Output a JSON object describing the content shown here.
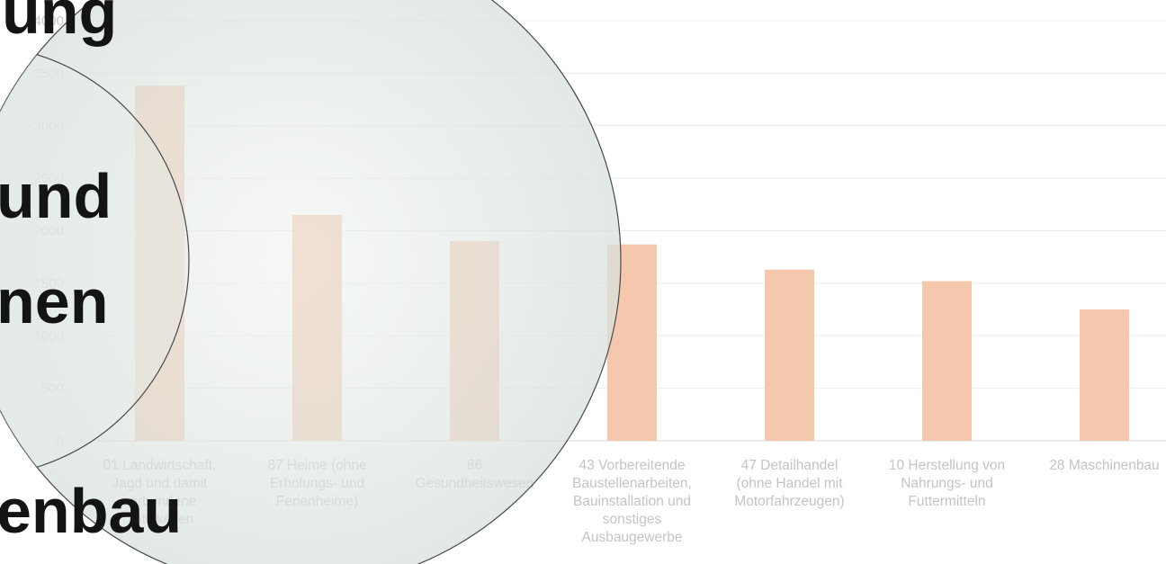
{
  "chart_data": {
    "type": "bar",
    "categories": [
      "01 Landwirtschaft, Jagd und damit verbundene Tätigkeiten",
      "87 Heime (ohne Erholungs- und Ferienheime)",
      "86 Gesundheitswesen",
      "43 Vorbereitende Baustellenarbeiten, Bauinstallation und sonstiges Ausbaugewerbe",
      "47 Detailhandel (ohne Handel mit Motorfahrzeugen)",
      "10 Herstellung von Nahrungs- und Futtermitteln",
      "28 Maschinenbau"
    ],
    "values": [
      3380,
      2150,
      1900,
      1870,
      1630,
      1520,
      1250
    ],
    "ylim": [
      0,
      4000
    ],
    "yticks": [
      "0",
      "500",
      "1000",
      "1500",
      "2000",
      "2500",
      "3000",
      "3500",
      "4000"
    ],
    "grid": true,
    "bar_color": "#f5c8ae",
    "title": "",
    "xlabel": "",
    "ylabel": ""
  },
  "overlay": {
    "words": [
      "ung",
      "und",
      "nen",
      "enbau"
    ],
    "text_color": "#141414",
    "lens_tint": "#e6ece8"
  }
}
